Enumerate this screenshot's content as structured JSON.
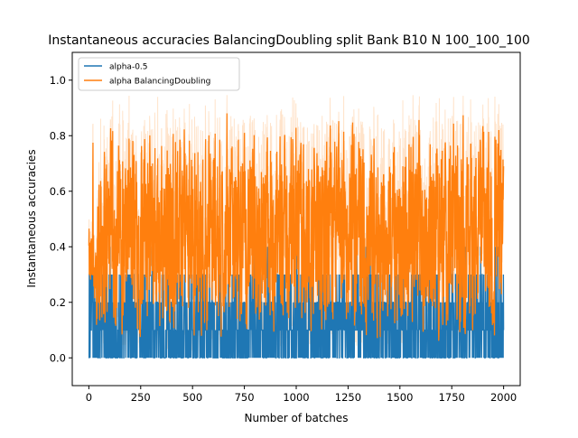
{
  "chart_data": {
    "type": "line",
    "title": "Instantaneous accuracies BalancingDoubling split Bank B10 N 100_100_100",
    "xlabel": "Number of batches",
    "ylabel": "Instantaneous accuracies",
    "xlim": [
      -80,
      2080
    ],
    "ylim": [
      -0.1,
      1.1
    ],
    "xticks": [
      0,
      250,
      500,
      750,
      1000,
      1250,
      1500,
      1750,
      2000
    ],
    "yticks": [
      0.0,
      0.2,
      0.4,
      0.6,
      0.8,
      1.0
    ],
    "xtick_labels": [
      "0",
      "250",
      "500",
      "750",
      "1000",
      "1250",
      "1500",
      "1750",
      "2000"
    ],
    "ytick_labels": [
      "0.0",
      "0.2",
      "0.4",
      "0.6",
      "0.8",
      "1.0"
    ],
    "grid": false,
    "legend_position": "top-left",
    "n_batches": 2000,
    "series": [
      {
        "name": "alpha-0.5",
        "color": "#1f77b4",
        "description": "Per-batch accuracy jumping between discrete levels 0.0, 0.1, 0.2, 0.3 with occasional 0.4",
        "levels": [
          0.0,
          0.1,
          0.2,
          0.3,
          0.4
        ],
        "level_weights": [
          0.33,
          0.27,
          0.25,
          0.13,
          0.02
        ],
        "max": 0.4
      },
      {
        "name": "alpha BalancingDoubling",
        "color": "#ff7f0e",
        "description": "Noisy smoothed accuracy oscillating roughly between 0.0 and 0.9, mean about 0.45; raw values shown as faint band",
        "mean": 0.45,
        "min": 0.0,
        "max": 0.92,
        "raw_min": -0.06,
        "raw_max": 1.02,
        "raw_band_color": "#ff7f0e",
        "raw_band_opacity": 0.22
      }
    ]
  }
}
